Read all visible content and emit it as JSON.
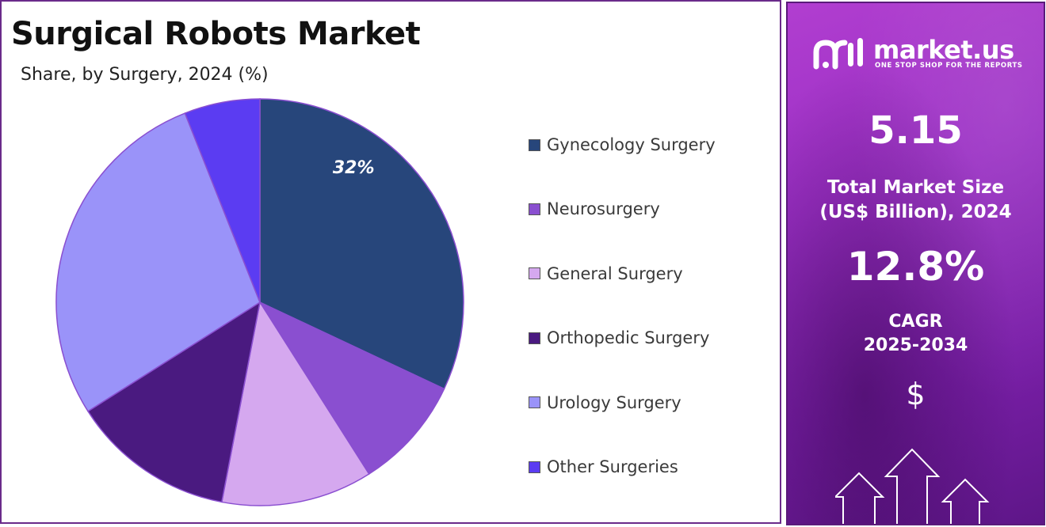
{
  "title": "Surgical Robots Market",
  "subtitle": "Share, by Surgery, 2024 (%)",
  "chart_data": {
    "type": "pie",
    "categories": [
      "Gynecology Surgery",
      "Neurosurgery",
      "General Surgery",
      "Orthopedic Surgery",
      "Urology Surgery",
      "Other Surgeries"
    ],
    "values": [
      32,
      9,
      12,
      13,
      28,
      6
    ],
    "colors": [
      "#27467b",
      "#8a4fd0",
      "#d5a8ef",
      "#4a1a80",
      "#9a93f9",
      "#5b3cf2"
    ],
    "data_labels": [
      "32%",
      "",
      "",
      "",
      "",
      ""
    ],
    "legend_position": "right",
    "start_angle": "12 o'clock, clockwise"
  },
  "brand": {
    "name": "market.us",
    "tagline": "ONE STOP SHOP FOR THE REPORTS"
  },
  "stats": {
    "market_size_value": "5.15",
    "market_size_label_line1": "Total Market Size",
    "market_size_label_line2": "(US$ Billion), 2024",
    "cagr_value": "12.8%",
    "cagr_label_line1": "CAGR",
    "cagr_label_line2": "2025-2034",
    "currency_symbol": "$"
  }
}
